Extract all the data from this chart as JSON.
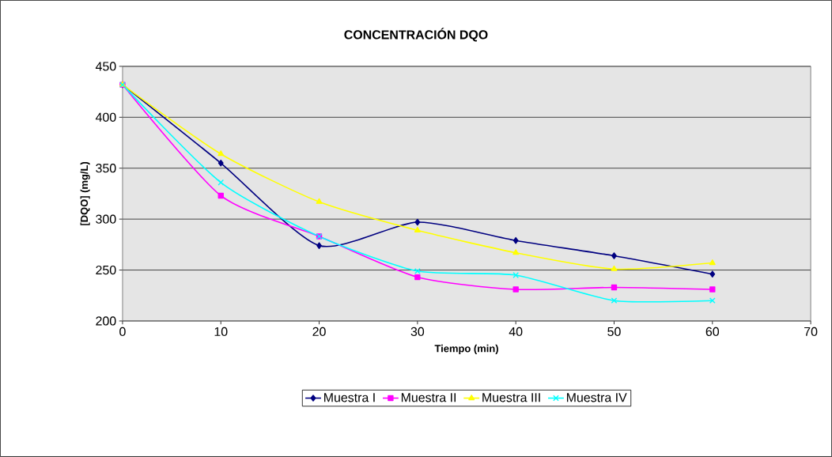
{
  "chart_data": {
    "type": "line",
    "title": "CONCENTRACIÓN DQO",
    "xlabel": "Tiempo (min)",
    "ylabel": "[DQO] (mg/L)",
    "x": [
      0,
      10,
      20,
      30,
      40,
      50,
      60
    ],
    "series": [
      {
        "name": "Muestra I",
        "color": "#000080",
        "marker": "diamond",
        "values": [
          432,
          355,
          274,
          297,
          279,
          264,
          246
        ]
      },
      {
        "name": "Muestra II",
        "color": "#ff00ff",
        "marker": "square",
        "values": [
          432,
          323,
          283,
          243,
          231,
          233,
          231
        ]
      },
      {
        "name": "Muestra III",
        "color": "#ffff00",
        "marker": "triangle",
        "values": [
          432,
          364,
          317,
          289,
          267,
          251,
          257
        ]
      },
      {
        "name": "Muestra IV",
        "color": "#00ffff",
        "marker": "cross",
        "values": [
          432,
          336,
          283,
          249,
          245,
          220,
          220
        ]
      }
    ],
    "xlim": [
      0,
      70
    ],
    "xticks": [
      0,
      10,
      20,
      30,
      40,
      50,
      60,
      70
    ],
    "ylim": [
      200,
      450
    ],
    "yticks": [
      200,
      250,
      300,
      350,
      400,
      450
    ],
    "grid": "y",
    "legend": "bottom",
    "line_style": "solid"
  }
}
